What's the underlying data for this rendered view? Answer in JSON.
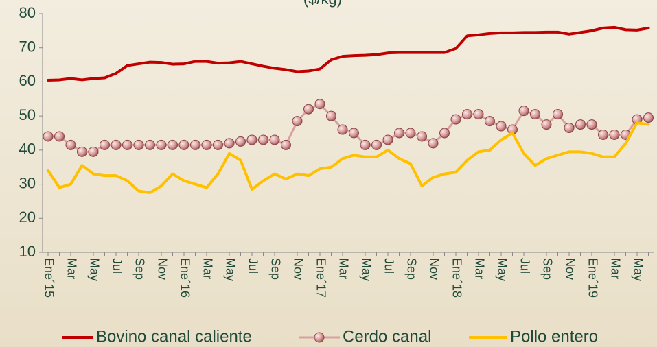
{
  "chart_data": {
    "type": "line",
    "title": "($/kg)",
    "categories": [
      "Ene´15",
      null,
      "Mar",
      null,
      "May",
      null,
      "Jul",
      null,
      "Sep",
      null,
      "Nov",
      null,
      "Ene´16",
      null,
      "Mar",
      null,
      "May",
      null,
      "Jul",
      null,
      "Sep",
      null,
      "Nov",
      null,
      "Ene´17",
      null,
      "Mar",
      null,
      "May",
      null,
      "Jul",
      null,
      "Sep",
      null,
      "Nov",
      null,
      "Ene´18",
      null,
      "Mar",
      null,
      "May",
      null,
      "Jul",
      null,
      "Sep",
      null,
      "Nov",
      null,
      "Ene´19",
      null,
      "Mar",
      null,
      "May",
      null
    ],
    "series": [
      {
        "name": "Bovino canal caliente",
        "color": "#c00000",
        "marker": false,
        "values": [
          60.5,
          60.6,
          61,
          60.6,
          61,
          61.2,
          62.5,
          64.8,
          65.3,
          65.8,
          65.7,
          65.2,
          65.3,
          66,
          66,
          65.5,
          65.6,
          66,
          65.3,
          64.6,
          64,
          63.6,
          63,
          63.2,
          63.8,
          66.5,
          67.5,
          67.7,
          67.8,
          68,
          68.5,
          68.6,
          68.6,
          68.6,
          68.6,
          68.6,
          69.8,
          73.5,
          73.8,
          74.2,
          74.4,
          74.4,
          74.5,
          74.5,
          74.6,
          74.6,
          74,
          74.5,
          75,
          75.8,
          76,
          75.3,
          75.2,
          75.8
        ]
      },
      {
        "name": "Cerdo canal",
        "color": "#d9a0a0",
        "marker": true,
        "values": [
          44,
          44,
          41.5,
          39.5,
          39.5,
          41.5,
          41.5,
          41.5,
          41.5,
          41.5,
          41.5,
          41.5,
          41.5,
          41.5,
          41.5,
          41.5,
          42,
          42.5,
          43,
          43,
          43,
          41.5,
          48.5,
          52,
          53.5,
          50,
          46,
          45,
          41.5,
          41.5,
          43,
          45,
          45,
          44,
          42,
          45,
          49,
          50.5,
          50.5,
          48.5,
          47,
          46,
          51.5,
          50.5,
          47.5,
          50.5,
          46.5,
          47.5,
          47.5,
          44.5,
          44.5,
          44.5,
          49,
          49.5
        ]
      },
      {
        "name": "Pollo entero",
        "color": "#ffc000",
        "marker": false,
        "values": [
          34,
          29,
          30,
          35.5,
          33,
          32.5,
          32.5,
          31,
          28,
          27.5,
          29.5,
          33,
          31,
          30,
          29,
          33,
          39,
          37,
          28.5,
          31,
          33,
          31.5,
          33,
          32.5,
          34.5,
          35,
          37.5,
          38.5,
          38,
          38,
          40,
          37.5,
          36,
          29.5,
          32,
          33,
          33.5,
          37,
          39.5,
          40,
          43,
          45,
          39,
          35.5,
          37.5,
          38.5,
          39.5,
          39.5,
          39,
          38,
          38,
          42,
          48,
          47.5
        ]
      }
    ],
    "ylim": [
      10,
      80
    ],
    "yticks": [
      10,
      20,
      30,
      40,
      50,
      60,
      70,
      80
    ],
    "grid": false,
    "legend": "bottom"
  }
}
